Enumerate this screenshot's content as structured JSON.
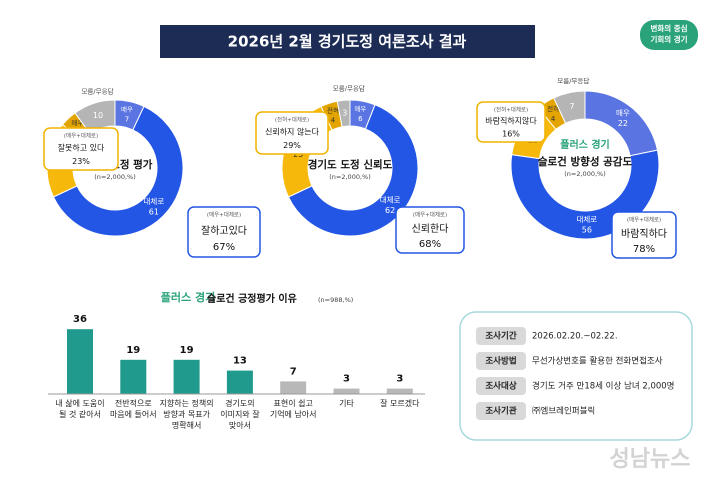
{
  "header": {
    "title": "2026년 2월 경기도정 여론조사 결과",
    "logo": [
      "변화의 중심",
      "기회의 경기"
    ],
    "watermark": "성남뉴스"
  },
  "chart_data": [
    {
      "type": "donut",
      "title": "경기도 도정 평가",
      "subtitle": "(n=2,000,%)",
      "categories": [
        "매우",
        "대체로",
        "대체로",
        "매우",
        "모름/무응답"
      ],
      "values": [
        7,
        61,
        18,
        4,
        10
      ],
      "colors": [
        "#5a74e2",
        "#2456e6",
        "#f6b80a",
        "#e3a400",
        "#b5b5b5"
      ],
      "callouts": [
        {
          "note": "(매우+대체로)",
          "label": "잘하고있다",
          "value": 67,
          "value_label": "67%",
          "tone": "positive"
        },
        {
          "note": "(매우+대체로)",
          "label": "잘못하고 있다",
          "value": 23,
          "value_label": "23%",
          "tone": "negative"
        }
      ]
    },
    {
      "type": "donut",
      "title": "경기도 도정 신뢰도",
      "subtitle": "(n=2,000,%)",
      "categories": [
        "매우",
        "대체로",
        "대체로",
        "전혀",
        "모름/무응답"
      ],
      "values": [
        6,
        62,
        25,
        4,
        3
      ],
      "colors": [
        "#5a74e2",
        "#2456e6",
        "#f6b80a",
        "#e3a400",
        "#b5b5b5"
      ],
      "callouts": [
        {
          "note": "(매우+대체로)",
          "label": "신뢰한다",
          "value": 68,
          "value_label": "68%",
          "tone": "positive"
        },
        {
          "note": "(전혀+대체로)",
          "label": "신뢰하지 않는다",
          "value": 29,
          "value_label": "29%",
          "tone": "negative"
        }
      ]
    },
    {
      "type": "donut",
      "title": "슬로건 방향성 공감도",
      "subtitle": "(n=2,000,%)",
      "badge": "플러스 경기",
      "categories": [
        "매우",
        "대체로",
        "대체로",
        "전혀",
        "모름/무응답"
      ],
      "values": [
        22,
        56,
        12,
        4,
        7
      ],
      "colors": [
        "#5a74e2",
        "#2456e6",
        "#f6b80a",
        "#e3a400",
        "#b5b5b5"
      ],
      "callouts": [
        {
          "note": "(매우+대체로)",
          "label": "바람직하다",
          "value": 78,
          "value_label": "78%",
          "tone": "positive"
        },
        {
          "note": "(전혀+대체로)",
          "label": "바람직하지않다",
          "value": 16,
          "value_label": "16%",
          "tone": "negative"
        }
      ]
    },
    {
      "type": "bar",
      "badge": "플러스 경기",
      "title": "슬로건 긍정평가 이유",
      "subtitle": "(n=988,%)",
      "categories": [
        "내 삶에 도움이\n될 것 같아서",
        "전반적으로\n마음에 들어서",
        "지향하는 정책의\n방향과 목표가\n명확해서",
        "경기도의\n이미지와 잘\n맞아서",
        "표현이 쉽고\n기억에 남아서",
        "기타",
        "잘 모르겠다"
      ],
      "values": [
        36,
        19,
        19,
        13,
        7,
        3,
        3
      ],
      "colors": [
        "#1f9a8c",
        "#1f9a8c",
        "#1f9a8c",
        "#1f9a8c",
        "#b8b8b8",
        "#b8b8b8",
        "#b8b8b8"
      ],
      "ylim": [
        0,
        40
      ]
    }
  ],
  "survey_info": [
    {
      "label": "조사기간",
      "text": "2026.02.20.~02.22."
    },
    {
      "label": "조사방법",
      "text": "무선가상번호를 활용한 전화면접조사"
    },
    {
      "label": "조사대상",
      "text": "경기도 거주 만18세 이상 남녀 2,000명"
    },
    {
      "label": "조사기관",
      "text": "㈜엠브레인퍼블릭"
    }
  ]
}
